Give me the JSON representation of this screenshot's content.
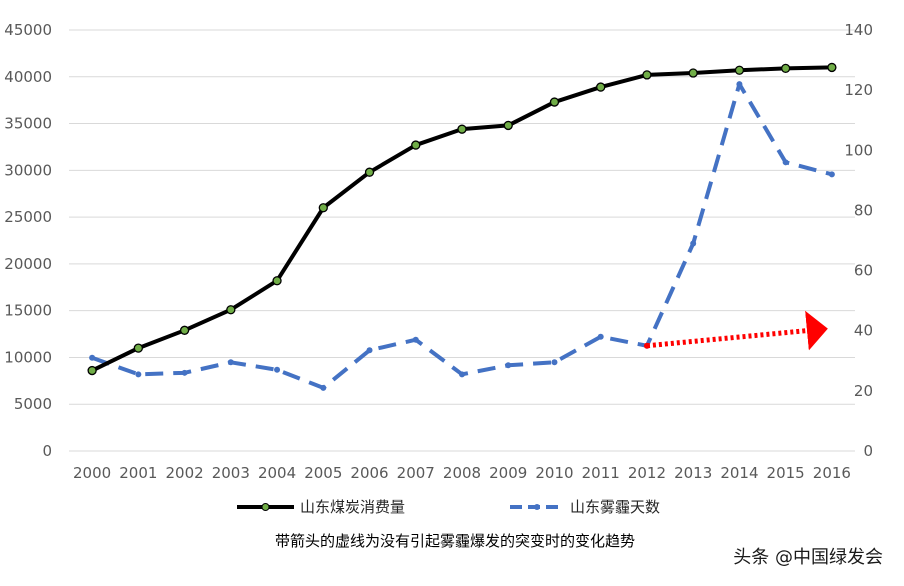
{
  "chart_data": {
    "type": "line",
    "x": [
      "2000",
      "2001",
      "2002",
      "2003",
      "2004",
      "2005",
      "2006",
      "2007",
      "2008",
      "2009",
      "2010",
      "2011",
      "2012",
      "2013",
      "2014",
      "2015",
      "2016"
    ],
    "y_left_ticks": [
      "0",
      "5000",
      "10000",
      "15000",
      "20000",
      "25000",
      "30000",
      "35000",
      "40000",
      "45000"
    ],
    "y_right_ticks": [
      "0",
      "20",
      "40",
      "60",
      "80",
      "100",
      "120",
      "140"
    ],
    "ylim_left": [
      0,
      45000
    ],
    "ylim_right": [
      0,
      140
    ],
    "grid": "horizontal",
    "legend_position": "bottom",
    "series": [
      {
        "name": "山东煤炭消费量",
        "axis": "left",
        "color": "#000000",
        "style": "solid-with-green-markers",
        "values": [
          8600,
          11000,
          12900,
          15100,
          18200,
          26000,
          29800,
          32700,
          34400,
          34800,
          37300,
          38900,
          40200,
          40400,
          40700,
          40900,
          41000
        ]
      },
      {
        "name": "山东雾霾天数",
        "axis": "right",
        "color": "#4472c4",
        "style": "dashed-with-markers",
        "values": [
          31,
          25.5,
          26,
          29.5,
          27,
          21,
          33.5,
          37,
          25.5,
          28.5,
          29.5,
          38,
          35,
          69,
          122,
          96,
          92
        ]
      }
    ],
    "annotation": {
      "style": "red-dotted-arrow",
      "color": "#ff0000",
      "from": {
        "x": "2012",
        "y": 35
      },
      "to": {
        "x": "2016",
        "y": 40.5
      }
    },
    "caption": "带箭头的虚线为没有引起雾霾爆发的突变时的变化趋势"
  },
  "watermark": "头条 @中国绿发会"
}
